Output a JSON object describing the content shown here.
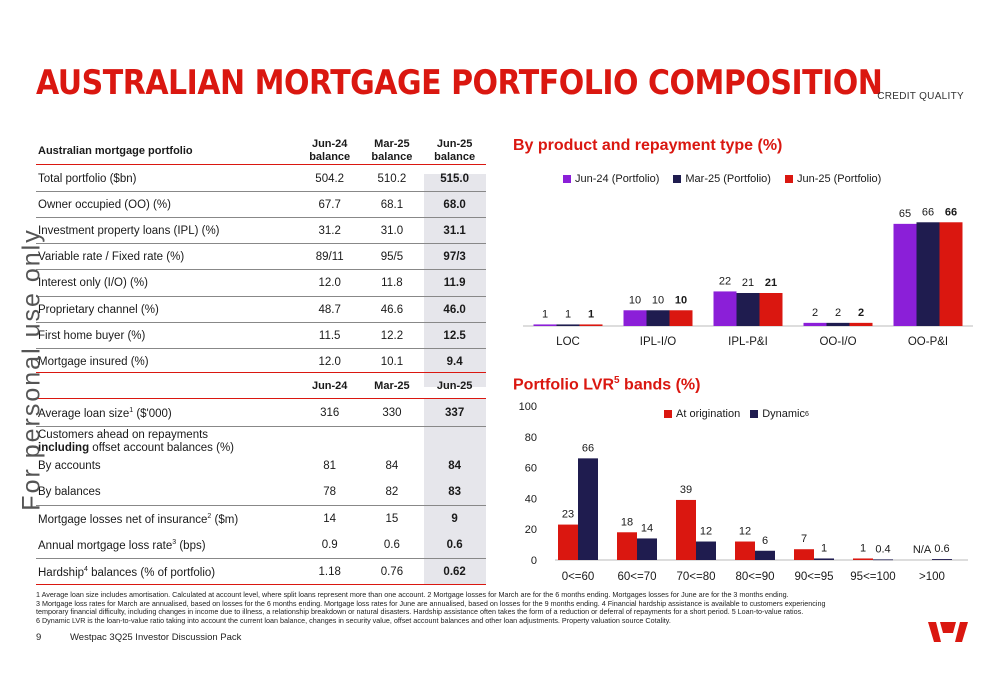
{
  "title": "AUSTRALIAN MORTGAGE PORTFOLIO COMPOSITION",
  "section_tag": "CREDIT QUALITY",
  "watermark": "For personal use only",
  "table": {
    "header1": {
      "label": "Australian mortgage portfolio",
      "col1": [
        "Jun-24",
        "balance"
      ],
      "col2": [
        "Mar-25",
        "balance"
      ],
      "col3": [
        "Jun-25",
        "balance"
      ]
    },
    "rows1": [
      {
        "label": "Total portfolio ($bn)",
        "v1": "504.2",
        "v2": "510.2",
        "v3": "515.0"
      },
      {
        "label": "Owner occupied (OO) (%)",
        "v1": "67.7",
        "v2": "68.1",
        "v3": "68.0"
      },
      {
        "label": "Investment property loans (IPL) (%)",
        "v1": "31.2",
        "v2": "31.0",
        "v3": "31.1"
      },
      {
        "label": "Variable rate / Fixed rate (%)",
        "v1": "89/11",
        "v2": "95/5",
        "v3": "97/3"
      },
      {
        "label": "Interest only (I/O) (%)",
        "v1": "12.0",
        "v2": "11.8",
        "v3": "11.9"
      },
      {
        "label": "Proprietary channel (%)",
        "v1": "48.7",
        "v2": "46.6",
        "v3": "46.0"
      },
      {
        "label": "First home buyer (%)",
        "v1": "11.5",
        "v2": "12.2",
        "v3": "12.5"
      },
      {
        "label": "Mortgage insured (%)",
        "v1": "12.0",
        "v2": "10.1",
        "v3": "9.4"
      }
    ],
    "header2": {
      "col1": "Jun-24",
      "col2": "Mar-25",
      "col3": "Jun-25"
    },
    "avg_loan": {
      "label_pre": "Average loan size",
      "sup": "1",
      "label_post": " ($'000)",
      "v1": "316",
      "v2": "330",
      "v3": "337"
    },
    "customers_ahead": {
      "line1": "Customers ahead on repayments",
      "line2_bold": "including",
      "line2_rest": " offset account balances (%)"
    },
    "by_accounts": {
      "label": "By accounts",
      "v1": "81",
      "v2": "84",
      "v3": "84"
    },
    "by_balances": {
      "label": "By balances",
      "v1": "78",
      "v2": "82",
      "v3": "83"
    },
    "losses": {
      "label_pre": "Mortgage losses net of insurance",
      "sup": "2",
      "label_post": " ($m)",
      "v1": "14",
      "v2": "15",
      "v3": "9"
    },
    "loss_rate": {
      "label_pre": "Annual mortgage loss rate",
      "sup": "3",
      "label_post": " (bps)",
      "v1": "0.9",
      "v2": "0.6",
      "v3": "0.6"
    },
    "hardship": {
      "label_pre": "Hardship",
      "sup": "4",
      "label_post": " balances (% of portfolio)",
      "v1": "1.18",
      "v2": "0.76",
      "v3": "0.62"
    }
  },
  "chart_data": [
    {
      "type": "bar",
      "title": "By product and repayment type (%)",
      "categories": [
        "LOC",
        "IPL-I/O",
        "IPL-P&I",
        "OO-I/O",
        "OO-P&I"
      ],
      "series": [
        {
          "name": "Jun-24 (Portfolio)",
          "values": [
            1,
            10,
            22,
            2,
            65
          ],
          "color": "#8b1fd8"
        },
        {
          "name": "Mar-25 (Portfolio)",
          "values": [
            1,
            10,
            21,
            2,
            66
          ],
          "color": "#1f1c4f"
        },
        {
          "name": "Jun-25 (Portfolio)",
          "values": [
            1,
            10,
            21,
            2,
            66
          ],
          "color": "#da1710"
        }
      ],
      "ylim": [
        0,
        70
      ],
      "legend": "top",
      "grid": false
    },
    {
      "type": "bar",
      "title_pre": "Portfolio LVR",
      "title_sup": "5",
      "title_post": " bands (%)",
      "categories": [
        "0<=60",
        "60<=70",
        "70<=80",
        "80<=90",
        "90<=95",
        "95<=100",
        ">100"
      ],
      "series": [
        {
          "name": "At origination",
          "values": [
            23,
            18,
            39,
            12,
            7,
            1,
            null
          ],
          "labels": [
            "23",
            "18",
            "39",
            "12",
            "7",
            "1",
            "N/A"
          ],
          "color": "#da1710"
        },
        {
          "name": "Dynamic",
          "name_sup": "6",
          "values": [
            66,
            14,
            12,
            6,
            1,
            0.4,
            0.6
          ],
          "labels": [
            "66",
            "14",
            "12",
            "6",
            "1",
            "0.4",
            "0.6"
          ],
          "color": "#1f1c4f"
        }
      ],
      "yticks": [
        "0",
        "20",
        "40",
        "60",
        "80",
        "100"
      ],
      "ylim": [
        0,
        100
      ],
      "legend": "top",
      "grid": false
    }
  ],
  "footnotes": [
    "1 Average loan size includes amortisation. Calculated at account level, where split loans represent more than one account. 2 Mortgage losses for March are for the 6 months ending.  Mortgages losses for June are for the 3 months ending.",
    "3 Mortgage loss rates for March are annualised, based on losses for the 6 months ending. Mortgage loss rates for June are annualised, based on losses for the 9 months ending.  4 Financial hardship assistance is available to customers experiencing",
    "temporary financial difficulty, including changes in income due to illness, a relationship breakdown or natural disasters. Hardship assistance often takes the form of a reduction or deferral of repayments for a short period. 5 Loan-to-value ratios.",
    "6 Dynamic LVR is the loan-to-value ratio taking into account the current loan balance, changes in security value, offset account balances and other loan adjustments. Property valuation source Cotality."
  ],
  "page_number": "9",
  "deck_name": "Westpac 3Q25 Investor Discussion Pack",
  "colors": {
    "brand_red": "#da1710",
    "navy": "#1f1c4f",
    "purple": "#8b1fd8"
  }
}
